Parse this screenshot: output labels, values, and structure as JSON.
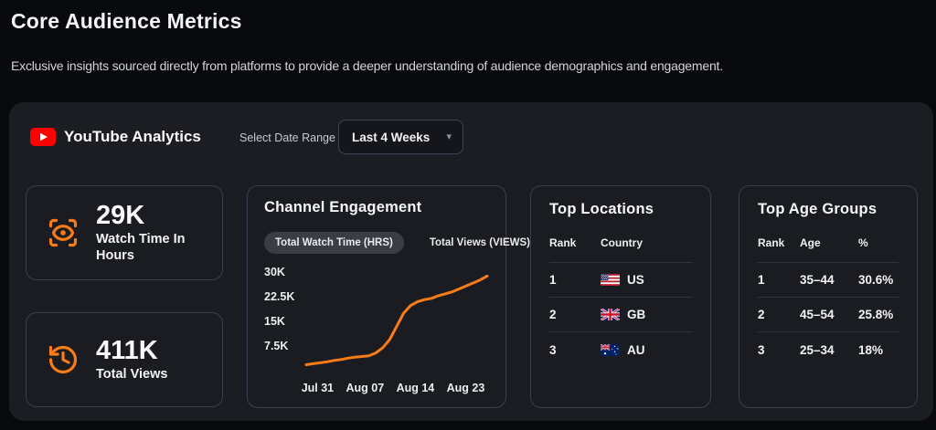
{
  "colors": {
    "accent_orange": "#f97c16",
    "youtube_red": "#ff0000",
    "card_bg": "#1b1d23",
    "page_bg": "#08090c",
    "panel_border": "#3a3e50"
  },
  "header": {
    "title": "Core Audience Metrics",
    "subtitle": "Exclusive insights sourced directly from platforms to provide a deeper understanding of audience demographics and engagement."
  },
  "card": {
    "title": "YouTube Analytics",
    "logo_icon": "youtube-logo-icon",
    "date_range_label": "Select Date Range",
    "date_range_value": "Last 4 Weeks",
    "caret_icon": "chevron-down-icon",
    "caret_glyph": "▾"
  },
  "stats": [
    {
      "icon": "scan-eye-icon",
      "value": "29K",
      "label": "Watch Time In Hours"
    },
    {
      "icon": "history-clock-icon",
      "value": "411K",
      "label": "Total Views"
    }
  ],
  "chart_data": {
    "type": "line",
    "title": "Channel Engagement",
    "tabs": [
      {
        "label": "Total Watch Time (HRS)",
        "active": true
      },
      {
        "label": "Total Views (VIEWS)",
        "active": false
      }
    ],
    "x_tick_labels": [
      "Jul 31",
      "Aug 07",
      "Aug 14",
      "Aug 23"
    ],
    "y_ticks": [
      {
        "label": "30K",
        "value": 30
      },
      {
        "label": "22.5K",
        "value": 22.5
      },
      {
        "label": "15K",
        "value": 15
      },
      {
        "label": "7.5K",
        "value": 7.5
      }
    ],
    "ylim_k": [
      0,
      31
    ],
    "unit": "K",
    "line_color": "#f97c16",
    "legend_position": "none",
    "grid": false,
    "series": [
      {
        "name": "Total Watch Time (HRS)",
        "values_k": [
          1.8,
          2.1,
          2.4,
          2.7,
          3.1,
          3.4,
          3.8,
          4.1,
          4.3,
          4.5,
          5.4,
          7.0,
          9.5,
          13.5,
          17.5,
          19.8,
          21.0,
          21.6,
          22.0,
          22.8,
          23.4,
          24.0,
          24.9,
          25.8,
          26.7,
          27.6,
          28.8
        ]
      }
    ]
  },
  "tables": {
    "locations": {
      "title": "Top Locations",
      "columns": [
        "Rank",
        "Country"
      ],
      "rows": [
        {
          "rank": "1",
          "country": "US",
          "flag": "us-flag-icon"
        },
        {
          "rank": "2",
          "country": "GB",
          "flag": "gb-flag-icon"
        },
        {
          "rank": "3",
          "country": "AU",
          "flag": "au-flag-icon"
        }
      ]
    },
    "age_groups": {
      "title": "Top Age Groups",
      "columns": [
        "Rank",
        "Age",
        "%"
      ],
      "rows": [
        {
          "rank": "1",
          "age": "35–44",
          "percent": "30.6%"
        },
        {
          "rank": "2",
          "age": "45–54",
          "percent": "25.8%"
        },
        {
          "rank": "3",
          "age": "25–34",
          "percent": "18%"
        }
      ]
    }
  }
}
